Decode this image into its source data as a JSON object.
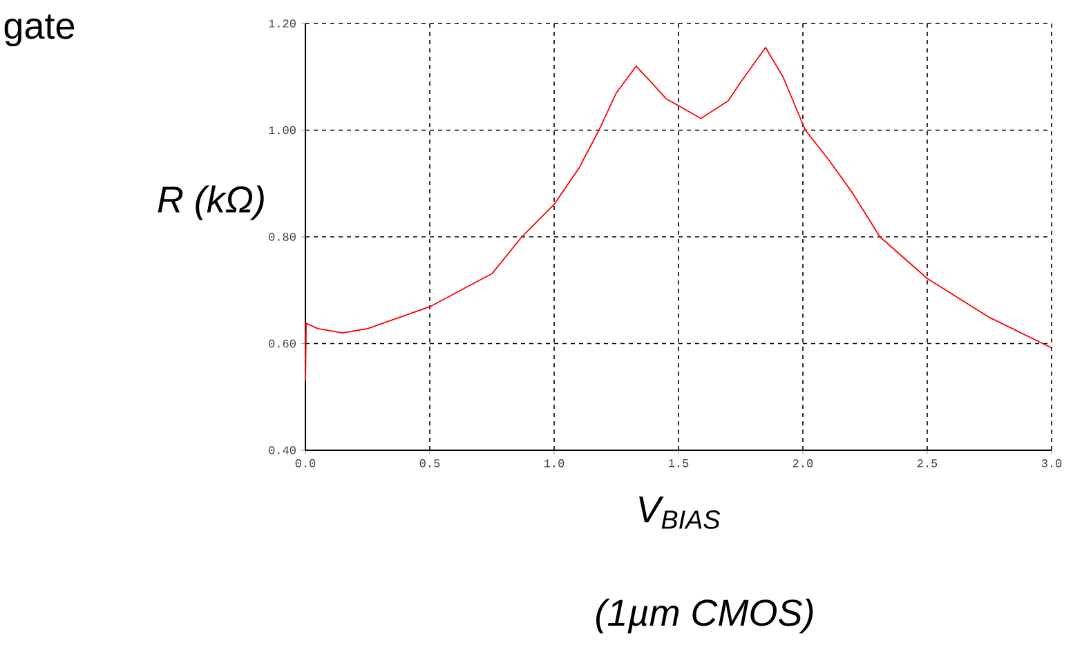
{
  "chart_data": {
    "type": "line",
    "xlabel": "V$_{BIAS}$",
    "ylabel": "R (kΩ)",
    "annotations": [
      "gate",
      "(1µm CMOS)"
    ],
    "x": [
      0,
      0.003,
      0.05,
      0.15,
      0.25,
      0.5,
      0.75,
      0.87,
      1.0,
      1.1,
      1.18,
      1.25,
      1.33,
      1.4,
      1.45,
      1.5,
      1.59,
      1.7,
      1.75,
      1.85,
      1.92,
      2.01,
      2.1,
      2.2,
      2.31,
      2.5,
      2.75,
      3.0
    ],
    "series": [
      {
        "color": "#ff0000",
        "values": [
          0.53,
          0.638,
          0.628,
          0.62,
          0.628,
          0.669,
          0.731,
          0.8,
          0.861,
          0.929,
          1.0,
          1.07,
          1.12,
          1.085,
          1.059,
          1.046,
          1.022,
          1.055,
          1.09,
          1.155,
          1.1,
          1.0,
          0.947,
          0.882,
          0.8,
          0.722,
          0.649,
          0.592
        ]
      }
    ],
    "xlim": [
      0,
      3.0
    ],
    "ylim": [
      0.4,
      1.2
    ],
    "xticks": [
      {
        "value": 0,
        "label": "0.0"
      },
      {
        "value": 0.5,
        "label": "0.5"
      },
      {
        "value": 1.0,
        "label": "1.0"
      },
      {
        "value": 1.5,
        "label": "1.5"
      },
      {
        "value": 2.0,
        "label": "2.0"
      },
      {
        "value": 2.5,
        "label": "2.5"
      },
      {
        "value": 3.0,
        "label": "3.0"
      }
    ],
    "yticks": [
      {
        "value": 0.4,
        "label": "0.40"
      },
      {
        "value": 0.6,
        "label": "0.60"
      },
      {
        "value": 0.8,
        "label": "0.80"
      },
      {
        "value": 1.0,
        "label": "1.00"
      },
      {
        "value": 1.2,
        "label": "1.20"
      }
    ],
    "grid": true,
    "line_style": "solid",
    "marker": "none"
  }
}
